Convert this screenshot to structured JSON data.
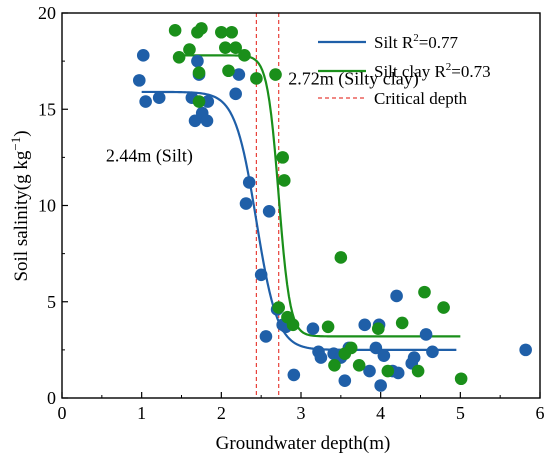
{
  "chart_data": {
    "type": "scatter",
    "xlabel": "Groundwater depth(m)",
    "ylabel_main": "Soil salinity(g kg",
    "ylabel_exp": "−1",
    "ylabel_close": ")",
    "xlim": [
      0,
      6
    ],
    "ylim": [
      0,
      20
    ],
    "xticks": [
      0,
      1,
      2,
      3,
      4,
      5,
      6
    ],
    "yticks": [
      0,
      5,
      10,
      15,
      20
    ],
    "grid": false,
    "legend_position": "top-right",
    "colors": {
      "silt": "#1f5fa8",
      "silty_clay": "#1a8f1a",
      "critical": "#e8413a"
    },
    "series": [
      {
        "name": "Silt",
        "legend_label": "Silt R",
        "legend_exp": "2",
        "legend_value": "=0.77",
        "color": "#1f5fa8",
        "fit": {
          "low": 2.5,
          "high": 15.9,
          "x0": 2.44,
          "k": 7.5,
          "xmin": 1.0,
          "xmax": 4.95
        },
        "points": [
          [
            0.97,
            16.5
          ],
          [
            1.02,
            17.8
          ],
          [
            1.05,
            15.4
          ],
          [
            1.22,
            15.6
          ],
          [
            1.63,
            15.6
          ],
          [
            1.67,
            14.4
          ],
          [
            1.7,
            17.5
          ],
          [
            1.72,
            16.8
          ],
          [
            1.76,
            14.8
          ],
          [
            1.82,
            14.4
          ],
          [
            1.83,
            15.4
          ],
          [
            2.18,
            15.8
          ],
          [
            2.22,
            16.8
          ],
          [
            2.31,
            10.1
          ],
          [
            2.35,
            11.2
          ],
          [
            2.5,
            6.4
          ],
          [
            2.56,
            3.2
          ],
          [
            2.6,
            9.7
          ],
          [
            2.7,
            4.6
          ],
          [
            2.77,
            3.8
          ],
          [
            2.81,
            3.7
          ],
          [
            2.91,
            1.2
          ],
          [
            3.15,
            3.6
          ],
          [
            3.22,
            2.4
          ],
          [
            3.25,
            2.1
          ],
          [
            3.41,
            2.3
          ],
          [
            3.5,
            2.1
          ],
          [
            3.55,
            0.9
          ],
          [
            3.6,
            2.6
          ],
          [
            3.8,
            3.8
          ],
          [
            3.86,
            1.4
          ],
          [
            3.94,
            2.6
          ],
          [
            3.98,
            3.8
          ],
          [
            4.0,
            0.65
          ],
          [
            4.04,
            2.2
          ],
          [
            4.15,
            1.4
          ],
          [
            4.2,
            5.3
          ],
          [
            4.22,
            1.3
          ],
          [
            4.39,
            1.8
          ],
          [
            4.42,
            2.1
          ],
          [
            4.57,
            3.3
          ],
          [
            4.65,
            2.4
          ],
          [
            5.82,
            2.5
          ]
        ]
      },
      {
        "name": "Silt clay",
        "legend_label": "Silt clay R",
        "legend_exp": "2",
        "legend_value": "=0.73",
        "color": "#1a8f1a",
        "fit": {
          "low": 3.2,
          "high": 17.8,
          "x0": 2.72,
          "k": 14,
          "xmin": 1.45,
          "xmax": 5.0
        },
        "points": [
          [
            1.42,
            19.1
          ],
          [
            1.47,
            17.7
          ],
          [
            1.6,
            18.1
          ],
          [
            1.7,
            19.0
          ],
          [
            1.72,
            16.9
          ],
          [
            1.72,
            15.4
          ],
          [
            1.75,
            19.2
          ],
          [
            2.0,
            19.0
          ],
          [
            2.05,
            18.2
          ],
          [
            2.09,
            17.0
          ],
          [
            2.13,
            19.0
          ],
          [
            2.18,
            18.2
          ],
          [
            2.29,
            17.8
          ],
          [
            2.44,
            16.6
          ],
          [
            2.68,
            16.8
          ],
          [
            2.72,
            4.7
          ],
          [
            2.77,
            12.5
          ],
          [
            2.79,
            11.3
          ],
          [
            2.83,
            4.2
          ],
          [
            2.9,
            3.8
          ],
          [
            3.34,
            3.7
          ],
          [
            3.42,
            1.7
          ],
          [
            3.5,
            7.3
          ],
          [
            3.55,
            2.3
          ],
          [
            3.63,
            2.6
          ],
          [
            3.73,
            1.7
          ],
          [
            3.97,
            3.6
          ],
          [
            4.09,
            1.4
          ],
          [
            4.27,
            3.9
          ],
          [
            4.47,
            1.4
          ],
          [
            4.55,
            5.5
          ],
          [
            4.79,
            4.7
          ],
          [
            5.01,
            1.0
          ]
        ]
      }
    ],
    "critical": {
      "legend_label": "Critical depth",
      "lines": [
        2.44,
        2.72
      ]
    },
    "annotations": [
      {
        "text": "2.44m (Silt)",
        "x": 0.55,
        "y": 12.6
      },
      {
        "text": "2.72m (Silty clay)",
        "x": 2.84,
        "y": 16.6
      }
    ]
  }
}
